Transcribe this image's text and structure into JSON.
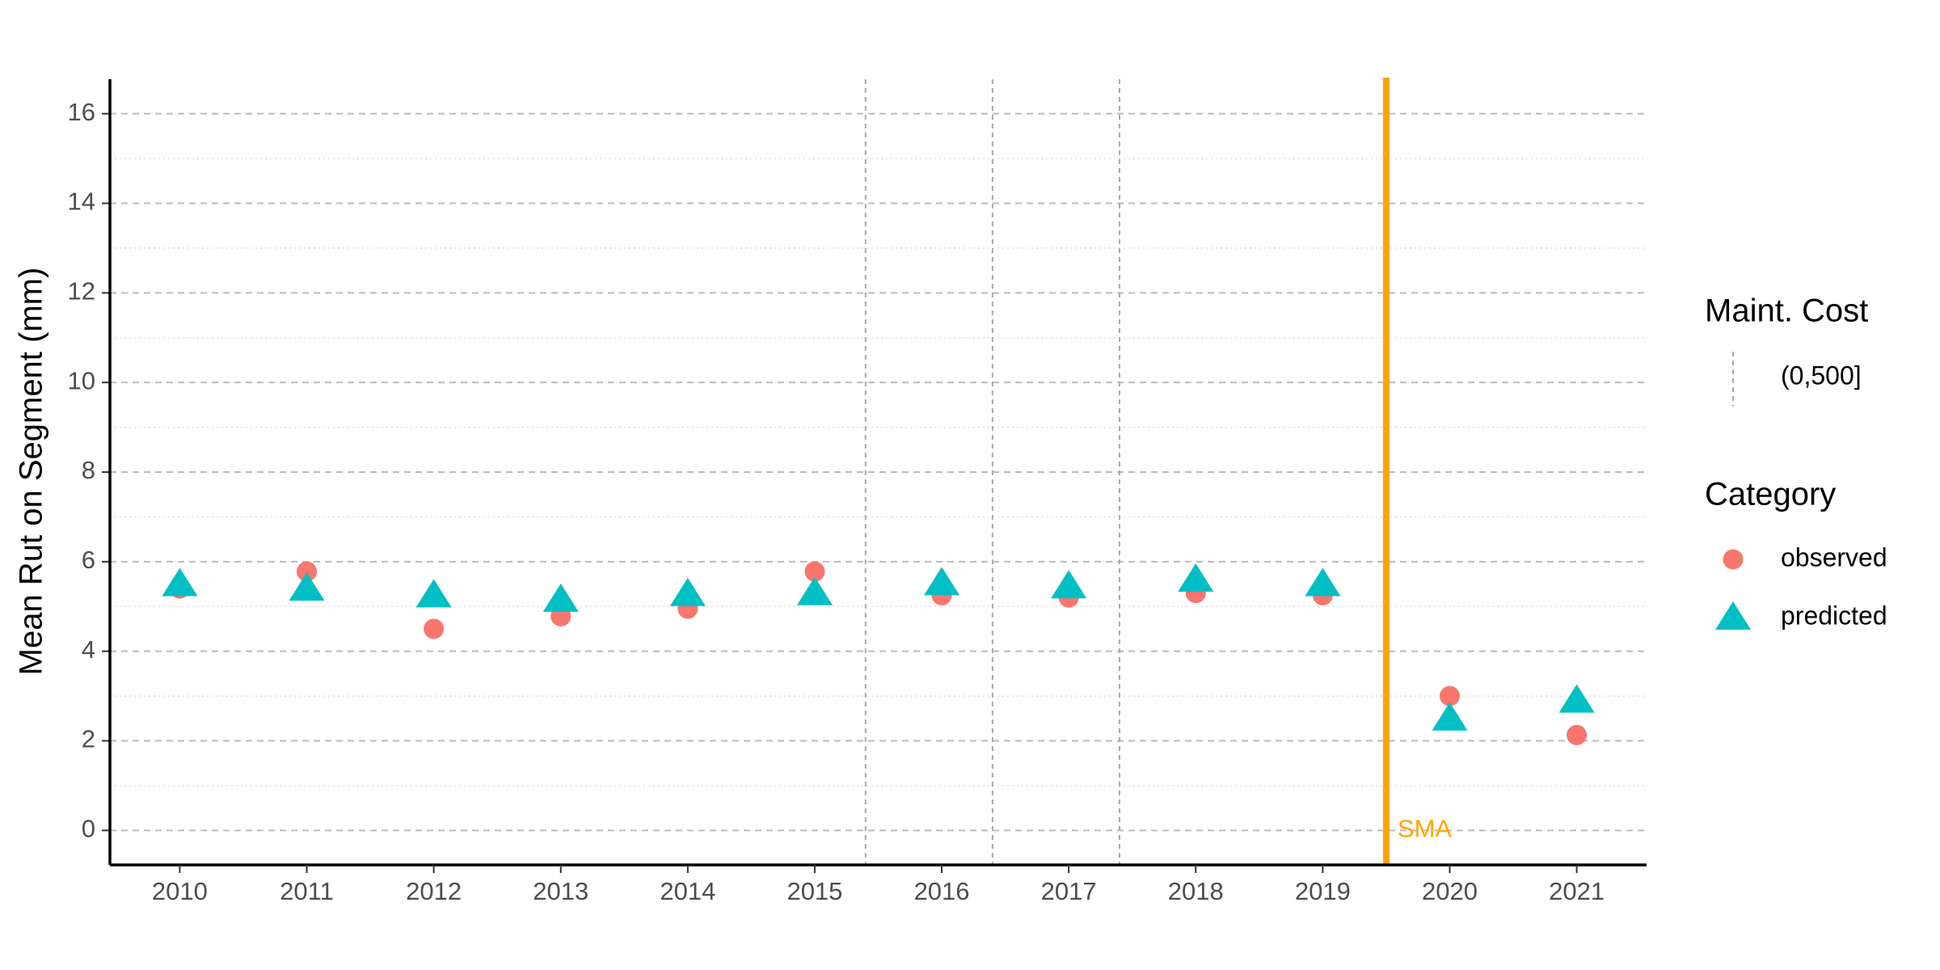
{
  "chart_data": {
    "type": "scatter",
    "y_label": "Mean Rut on Segment (mm)",
    "categories": [
      "2010",
      "2011",
      "2012",
      "2013",
      "2014",
      "2015",
      "2016",
      "2017",
      "2018",
      "2019",
      "2020",
      "2021"
    ],
    "series": [
      {
        "name": "observed",
        "color": "#F8766D",
        "marker": "circle",
        "values": [
          5.4,
          5.78,
          4.5,
          4.78,
          4.95,
          5.78,
          5.25,
          5.2,
          5.3,
          5.25,
          3.0,
          2.13
        ]
      },
      {
        "name": "predicted",
        "color": "#00BFC4",
        "marker": "triangle",
        "values": [
          5.5,
          5.4,
          5.25,
          5.15,
          5.28,
          5.3,
          5.52,
          5.45,
          5.6,
          5.5,
          2.5,
          2.9
        ]
      }
    ],
    "xlim": [
      -0.55,
      11.55
    ],
    "ylim": [
      -0.77,
      16.77
    ],
    "yticks": [
      0,
      2,
      4,
      6,
      8,
      10,
      12,
      14,
      16
    ],
    "minor_yticks": [
      1,
      3,
      5,
      7,
      9,
      11,
      13,
      15
    ],
    "grid": true,
    "legend_title": "Category",
    "maintenance": {
      "title": "Maint. Cost",
      "label": "(0,500]",
      "positions": [
        5.4,
        6.4,
        7.4
      ]
    },
    "annotation": {
      "text": "SMA",
      "position": 9.5,
      "color": "#FFA500"
    }
  }
}
